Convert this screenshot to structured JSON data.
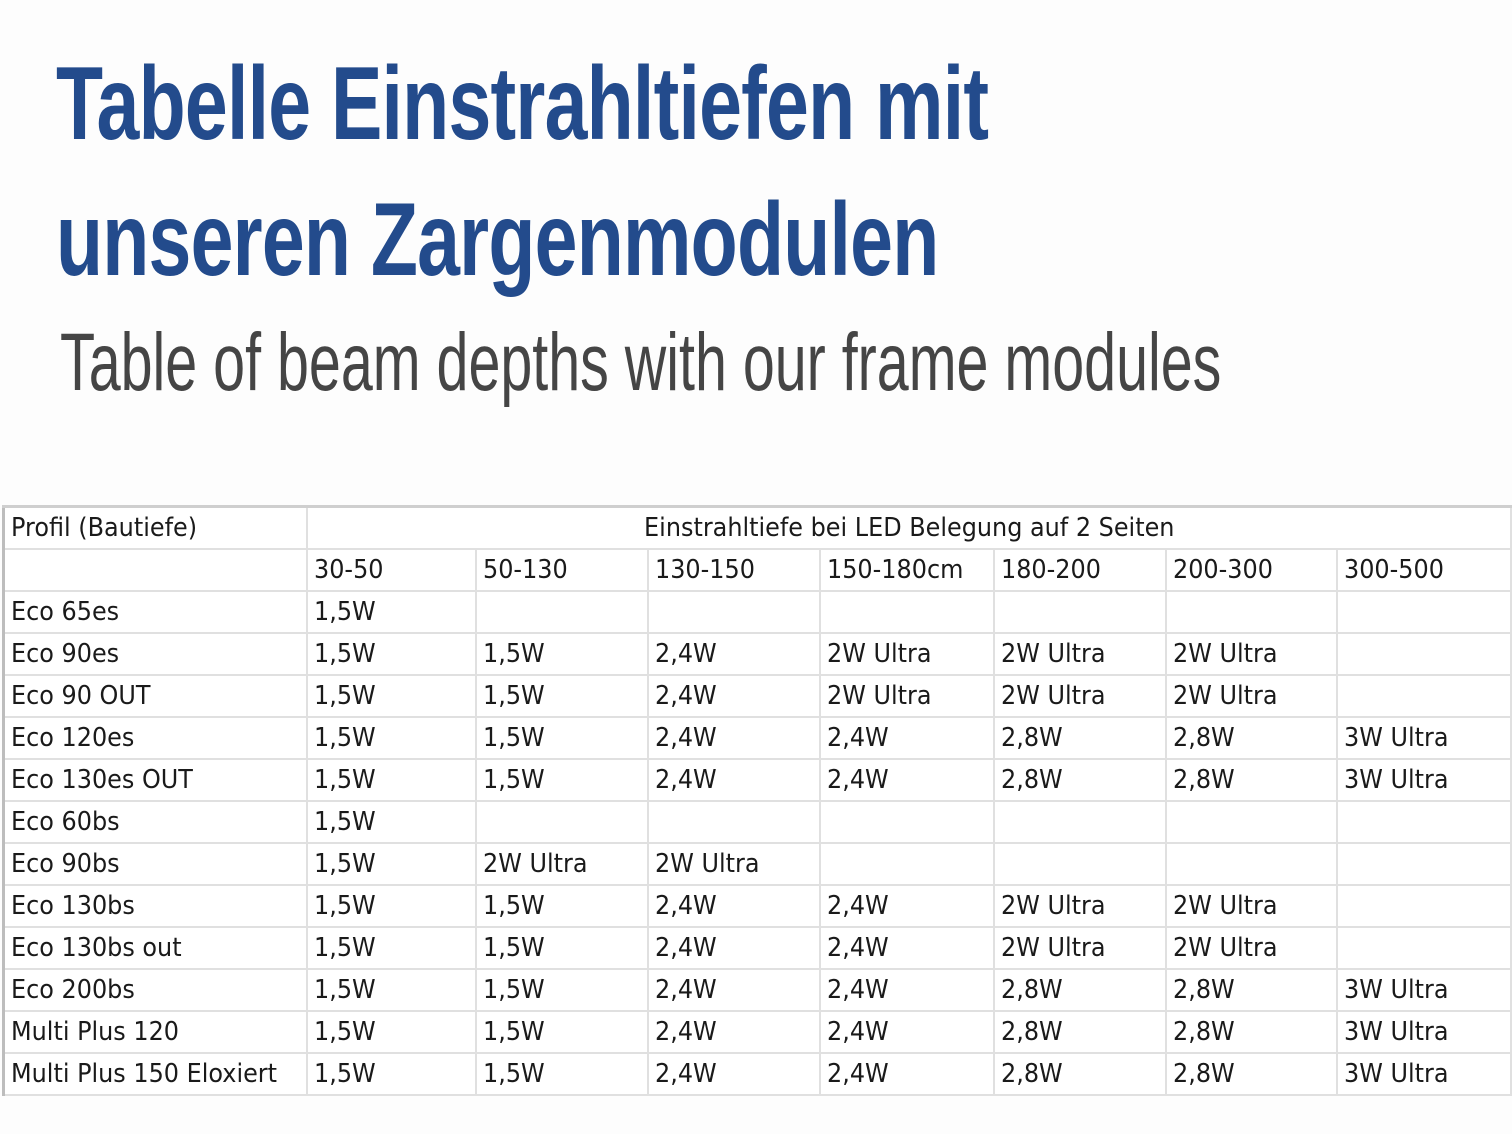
{
  "title_line1": "Tabelle Einstrahltiefen mit",
  "title_line2": "unseren Zargenmodulen",
  "subtitle": "Table of beam depths with our frame modules",
  "colors": {
    "title": "#234b8c",
    "subtitle": "#454545",
    "grid": "#e0e0e0"
  },
  "table": {
    "corner_header": "Profil (Bautiefe)",
    "group_header": "Einstrahltiefe bei LED Belegung auf 2 Seiten",
    "columns": [
      "30-50",
      "50-130",
      "130-150",
      "150-180cm",
      "180-200",
      "200-300",
      "300-500"
    ],
    "rows": [
      {
        "profile": "Eco 65es",
        "values": [
          "1,5W",
          "",
          "",
          "",
          "",
          "",
          ""
        ]
      },
      {
        "profile": "Eco 90es",
        "values": [
          "1,5W",
          "1,5W",
          "2,4W",
          "2W Ultra",
          "2W Ultra",
          "2W Ultra",
          ""
        ]
      },
      {
        "profile": "Eco 90 OUT",
        "values": [
          "1,5W",
          "1,5W",
          "2,4W",
          "2W Ultra",
          "2W Ultra",
          "2W Ultra",
          ""
        ]
      },
      {
        "profile": "Eco 120es",
        "values": [
          "1,5W",
          "1,5W",
          "2,4W",
          "2,4W",
          "2,8W",
          "2,8W",
          "3W Ultra"
        ]
      },
      {
        "profile": "Eco 130es OUT",
        "values": [
          "1,5W",
          "1,5W",
          "2,4W",
          "2,4W",
          "2,8W",
          "2,8W",
          "3W Ultra"
        ]
      },
      {
        "profile": "Eco 60bs",
        "values": [
          "1,5W",
          "",
          "",
          "",
          "",
          "",
          ""
        ]
      },
      {
        "profile": "Eco 90bs",
        "values": [
          "1,5W",
          "2W Ultra",
          "2W Ultra",
          "",
          "",
          "",
          ""
        ]
      },
      {
        "profile": "Eco 130bs",
        "values": [
          "1,5W",
          "1,5W",
          "2,4W",
          "2,4W",
          "2W Ultra",
          "2W Ultra",
          ""
        ]
      },
      {
        "profile": "Eco 130bs out",
        "values": [
          "1,5W",
          "1,5W",
          "2,4W",
          "2,4W",
          "2W Ultra",
          "2W Ultra",
          ""
        ]
      },
      {
        "profile": "Eco 200bs",
        "values": [
          "1,5W",
          "1,5W",
          "2,4W",
          "2,4W",
          "2,8W",
          "2,8W",
          "3W Ultra"
        ]
      },
      {
        "profile": "Multi Plus 120",
        "values": [
          "1,5W",
          "1,5W",
          "2,4W",
          "2,4W",
          "2,8W",
          "2,8W",
          "3W Ultra"
        ]
      },
      {
        "profile": "Multi Plus 150 Eloxiert",
        "values": [
          "1,5W",
          "1,5W",
          "2,4W",
          "2,4W",
          "2,8W",
          "2,8W",
          "3W Ultra"
        ]
      }
    ]
  }
}
